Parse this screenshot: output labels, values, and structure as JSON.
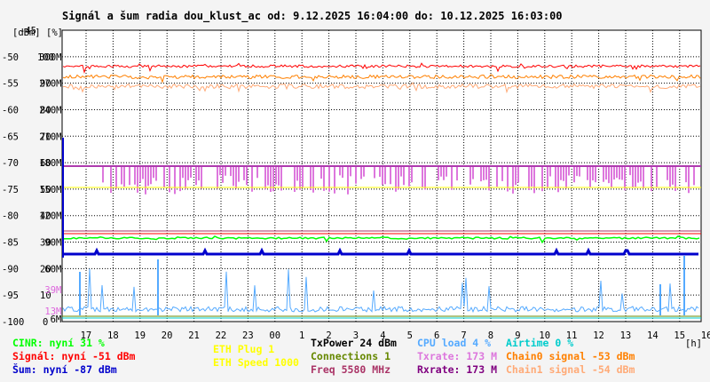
{
  "chart_data": {
    "type": "line",
    "title": "Signál a šum radia dou_klust_ac od: 9.12.2025 16:04:00 do: 10.12.2025 16:03:00",
    "unit_labels": {
      "left": "[dBm]",
      "mid": "[%]",
      "x": "[h]"
    },
    "x_ticks": [
      "17",
      "18",
      "19",
      "20",
      "21",
      "22",
      "23",
      "00",
      "1",
      "2",
      "3",
      "4",
      "5",
      "6",
      "7",
      "8",
      "9",
      "10",
      "11",
      "12",
      "13",
      "14",
      "15",
      "16"
    ],
    "y_dbm_ticks": [
      "-45",
      "-50",
      "-55",
      "-60",
      "-65",
      "-70",
      "-75",
      "-80",
      "-85",
      "-90",
      "-95",
      "-100"
    ],
    "y_pct_ticks": [
      "100",
      "90",
      "80",
      "70",
      "60",
      "50",
      "40",
      "30",
      "20",
      "10",
      "0"
    ],
    "y_rate_ticks": [
      "300M",
      "270M",
      "240M",
      "210M",
      "180M",
      "150M",
      "120M",
      "90M",
      "60M",
      "39M",
      "13M",
      "6M"
    ],
    "rate_tick_colors": [
      "#000000",
      "#000000",
      "#000000",
      "#000000",
      "#000000",
      "#000000",
      "#000000",
      "#000000",
      "#000000",
      "#dd66dd",
      "#dd66dd",
      "#000000"
    ],
    "ylim_dbm": [
      -100,
      -45
    ],
    "grid": true,
    "series": [
      {
        "name": "Signál",
        "color": "#ff0000",
        "avg_dbm": -51
      },
      {
        "name": "Chain0 signal",
        "color": "#ff8000",
        "avg_dbm": -53
      },
      {
        "name": "Chain1 signal",
        "color": "#ffaa77",
        "avg_dbm": -54
      },
      {
        "name": "Šum",
        "color": "#0000cc",
        "avg_dbm": -87
      },
      {
        "name": "CINR",
        "color": "#00ff00",
        "avg_pct": 31
      },
      {
        "name": "Txrate",
        "color": "#dd77dd",
        "avg_mbps": 173
      },
      {
        "name": "Rxrate",
        "color": "#800080",
        "avg_mbps": 173
      },
      {
        "name": "CPU load",
        "color": "#55aaff",
        "avg_pct": 4
      },
      {
        "name": "Airtime",
        "color": "#00cccc",
        "avg_pct": 0
      }
    ]
  },
  "legend": {
    "col1": [
      {
        "text": "CINR: nyní 31 %",
        "color": "#00ff00"
      },
      {
        "text": "Signál: nyní -51 dBm",
        "color": "#ff0000"
      },
      {
        "text": "Šum: nyní -87 dBm",
        "color": "#0000cc"
      }
    ],
    "col2": [
      {
        "text": "ETH Plug 1",
        "color": "#ffff00"
      },
      {
        "text": "ETH Speed 1000",
        "color": "#ffff00"
      }
    ],
    "col3": [
      {
        "text": "TxPower 24 dBm",
        "color": "#000000"
      },
      {
        "text": "Connections 1",
        "color": "#668800"
      },
      {
        "text": "Freq 5580 MHz",
        "color": "#aa3366"
      }
    ],
    "col4": [
      {
        "text": "CPU load 4 %",
        "color": "#55aaff"
      },
      {
        "text": "Txrate: 173 M",
        "color": "#dd77dd"
      },
      {
        "text": "Rxrate: 173 M",
        "color": "#800080"
      }
    ],
    "col5": [
      {
        "text": "Airtime 0 %",
        "color": "#00cccc"
      },
      {
        "text": "Chain0 signal -53 dBm",
        "color": "#ff8000"
      },
      {
        "text": "Chain1 signal -54 dBm",
        "color": "#ffaa77"
      }
    ]
  }
}
